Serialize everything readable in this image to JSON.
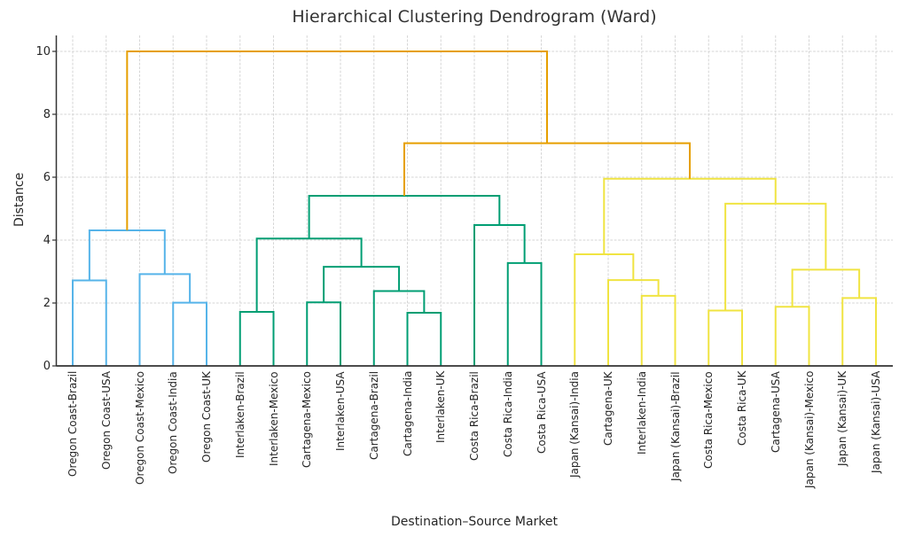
{
  "palette": {
    "cluster_blue": "#56B4E9",
    "cluster_green": "#009E73",
    "cluster_yellow": "#F0E442",
    "link_orange": "#E69F00",
    "grid": "#d6d6d6",
    "spine": "#333333",
    "text": "#262626"
  },
  "chart_data": {
    "type": "dendrogram",
    "title": "Hierarchical Clustering Dendrogram (Ward)",
    "xlabel": "Destination–Source Market",
    "ylabel": "Distance",
    "ylim": [
      0,
      10.5
    ],
    "y_ticks": [
      0,
      2,
      4,
      6,
      8,
      10
    ],
    "grid": true,
    "leaves": [
      "Oregon Coast-Brazil",
      "Oregon Coast-USA",
      "Oregon Coast-Mexico",
      "Oregon Coast-India",
      "Oregon Coast-UK",
      "Interlaken-Brazil",
      "Interlaken-Mexico",
      "Cartagena-Mexico",
      "Interlaken-USA",
      "Cartagena-Brazil",
      "Cartagena-India",
      "Interlaken-UK",
      "Costa Rica-Brazil",
      "Costa Rica-India",
      "Costa Rica-USA",
      "Japan (Kansai)-India",
      "Cartagena-UK",
      "Interlaken-India",
      "Japan (Kansai)-Brazil",
      "Costa Rica-Mexico",
      "Costa Rica-UK",
      "Cartagena-USA",
      "Japan (Kansai)-Mexico",
      "Japan (Kansai)-UK",
      "Japan (Kansai)-USA"
    ],
    "merges": [
      {
        "id": "M0",
        "children": [
          "L0",
          "L1"
        ],
        "height": 2.72,
        "color": "#56B4E9"
      },
      {
        "id": "M1",
        "children": [
          "L3",
          "L4"
        ],
        "height": 2.01,
        "color": "#56B4E9"
      },
      {
        "id": "M2",
        "children": [
          "L2",
          "M1"
        ],
        "height": 2.92,
        "color": "#56B4E9"
      },
      {
        "id": "M3",
        "children": [
          "M0",
          "M2"
        ],
        "height": 4.31,
        "color": "#56B4E9"
      },
      {
        "id": "M4",
        "children": [
          "L5",
          "L6"
        ],
        "height": 1.72,
        "color": "#009E73"
      },
      {
        "id": "M5",
        "children": [
          "L7",
          "L8"
        ],
        "height": 2.02,
        "color": "#009E73"
      },
      {
        "id": "M6",
        "children": [
          "L10",
          "L11"
        ],
        "height": 1.69,
        "color": "#009E73"
      },
      {
        "id": "M7",
        "children": [
          "L9",
          "M6"
        ],
        "height": 2.38,
        "color": "#009E73"
      },
      {
        "id": "M8",
        "children": [
          "M5",
          "M7"
        ],
        "height": 3.15,
        "color": "#009E73"
      },
      {
        "id": "M9",
        "children": [
          "M4",
          "M8"
        ],
        "height": 4.05,
        "color": "#009E73"
      },
      {
        "id": "M10",
        "children": [
          "L13",
          "L14"
        ],
        "height": 3.27,
        "color": "#009E73"
      },
      {
        "id": "M11",
        "children": [
          "L12",
          "M10"
        ],
        "height": 4.48,
        "color": "#009E73"
      },
      {
        "id": "M12",
        "children": [
          "M9",
          "M11"
        ],
        "height": 5.41,
        "color": "#009E73"
      },
      {
        "id": "M13",
        "children": [
          "L17",
          "L18"
        ],
        "height": 2.23,
        "color": "#F0E442"
      },
      {
        "id": "M14",
        "children": [
          "L16",
          "M13"
        ],
        "height": 2.73,
        "color": "#F0E442"
      },
      {
        "id": "M15",
        "children": [
          "L15",
          "M14"
        ],
        "height": 3.55,
        "color": "#F0E442"
      },
      {
        "id": "M16",
        "children": [
          "L19",
          "L20"
        ],
        "height": 1.76,
        "color": "#F0E442"
      },
      {
        "id": "M17",
        "children": [
          "L21",
          "L22"
        ],
        "height": 1.88,
        "color": "#F0E442"
      },
      {
        "id": "M18",
        "children": [
          "L23",
          "L24"
        ],
        "height": 2.16,
        "color": "#F0E442"
      },
      {
        "id": "M19",
        "children": [
          "M17",
          "M18"
        ],
        "height": 3.06,
        "color": "#F0E442"
      },
      {
        "id": "M20",
        "children": [
          "M16",
          "M19"
        ],
        "height": 5.16,
        "color": "#F0E442"
      },
      {
        "id": "M21",
        "children": [
          "M15",
          "M20"
        ],
        "height": 5.95,
        "color": "#F0E442"
      },
      {
        "id": "M22",
        "children": [
          "M12",
          "M21"
        ],
        "height": 7.08,
        "color": "#E69F00"
      },
      {
        "id": "M23",
        "children": [
          "M3",
          "M22"
        ],
        "height": 10.0,
        "color": "#E69F00"
      }
    ]
  }
}
